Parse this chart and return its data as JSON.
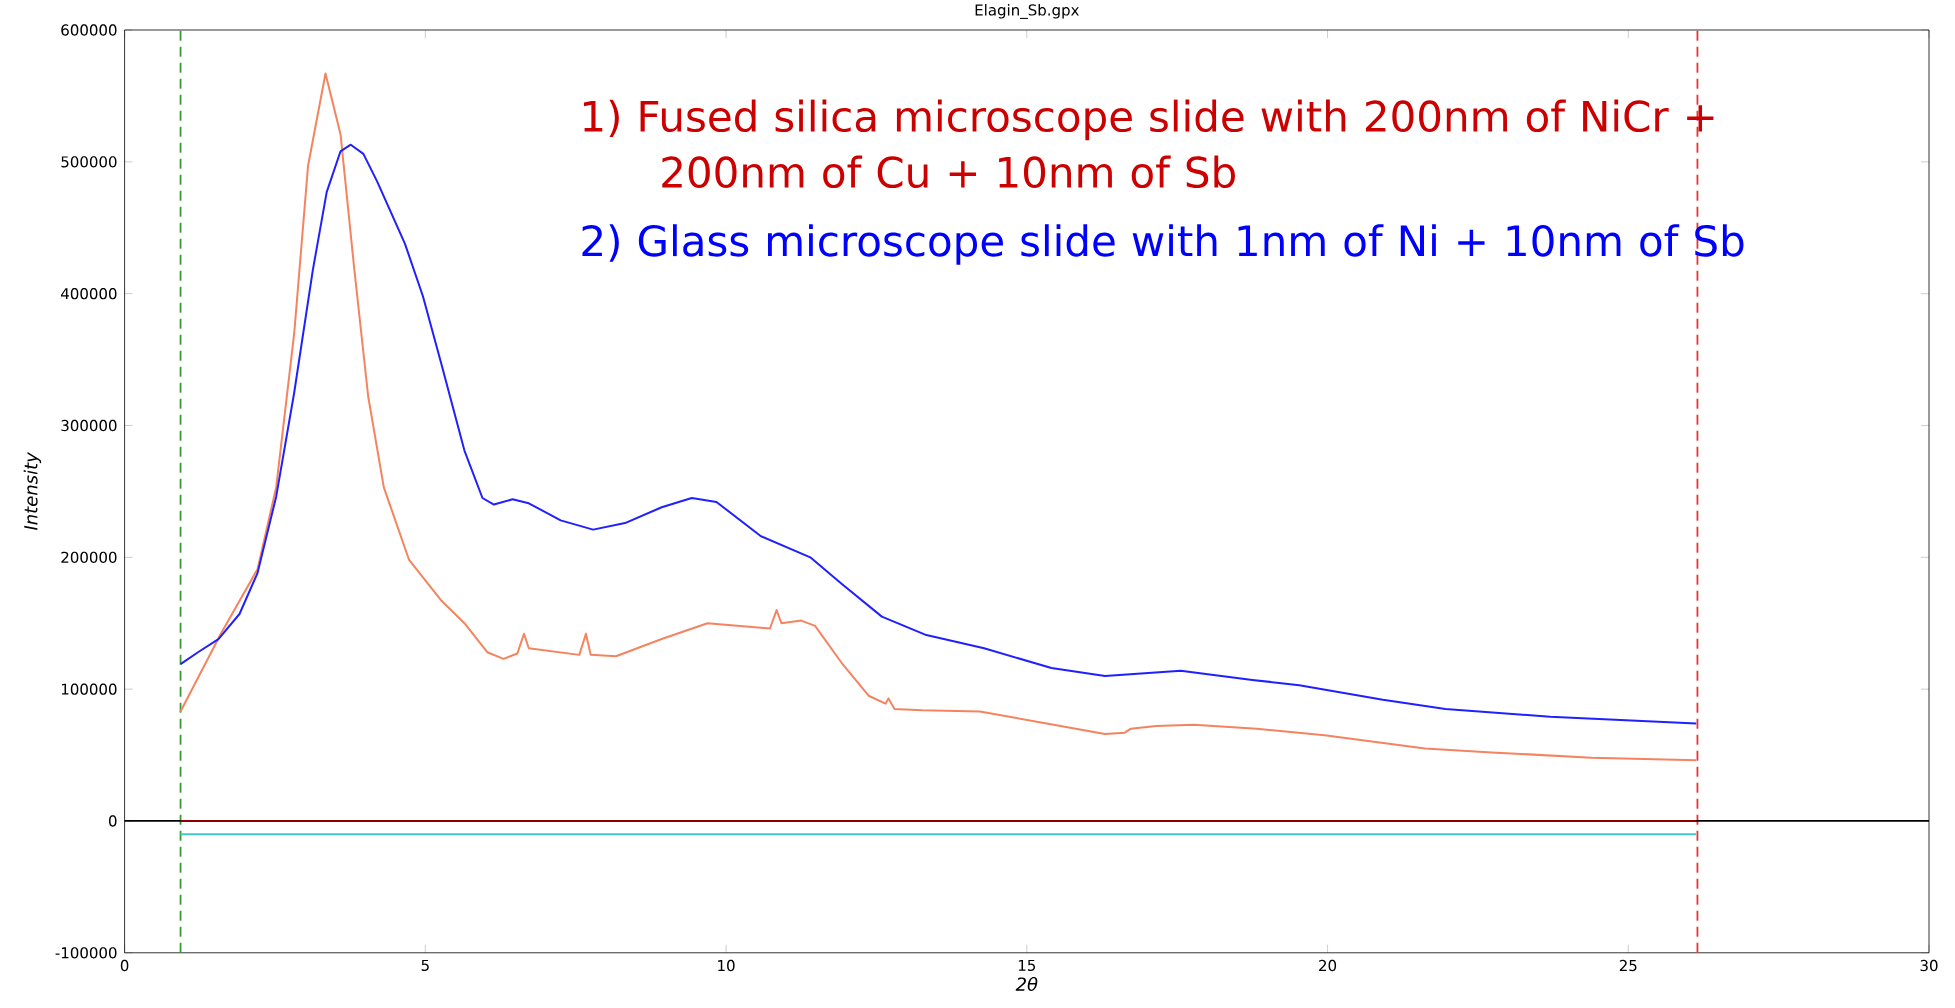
{
  "chart_data": {
    "type": "line",
    "title": "Elagin_Sb.gpx",
    "xlabel": "2θ",
    "ylabel": "Intensity",
    "xlim": [
      0,
      30
    ],
    "xticks": [
      0,
      5,
      10,
      15,
      20,
      25,
      30
    ],
    "ylim": [
      -100000,
      600000
    ],
    "yticks": [
      -100000,
      0,
      100000,
      200000,
      300000,
      400000,
      500000,
      600000
    ],
    "grid": false,
    "series": [
      {
        "color": "#f4845f",
        "x": [
          0.93,
          1.6,
          2.21,
          2.52,
          2.82,
          3.05,
          3.34,
          3.59,
          3.82,
          4.05,
          4.31,
          4.73,
          5.27,
          5.65,
          6.03,
          6.3,
          6.53,
          6.64,
          6.72,
          7.56,
          7.67,
          7.75,
          8.17,
          8.93,
          9.69,
          10.73,
          10.84,
          10.92,
          11.25,
          11.48,
          11.92,
          12.37,
          12.65,
          12.7,
          12.8,
          13.26,
          14.22,
          15.33,
          16.3,
          16.63,
          16.73,
          17.15,
          17.78,
          18.82,
          19.95,
          21.62,
          22.73,
          24.39,
          26.13
        ],
        "values": [
          83000,
          142000,
          191000,
          253000,
          370000,
          497000,
          567000,
          521000,
          418000,
          322000,
          253000,
          198000,
          167000,
          150000,
          128000,
          123000,
          127000,
          142000,
          131000,
          126000,
          142000,
          126000,
          125000,
          138000,
          150000,
          146000,
          160000,
          150000,
          152000,
          148000,
          120000,
          95000,
          89000,
          93000,
          85000,
          84000,
          83000,
          74000,
          66000,
          67000,
          70000,
          72000,
          73000,
          70000,
          65000,
          55000,
          52000,
          48000,
          46000
        ]
      },
      {
        "color": "#2020ff",
        "x": [
          0.93,
          1.22,
          1.56,
          1.91,
          2.21,
          2.52,
          2.82,
          3.13,
          3.36,
          3.59,
          3.76,
          3.97,
          4.2,
          4.66,
          4.96,
          5.27,
          5.65,
          5.95,
          6.14,
          6.45,
          6.72,
          7.25,
          7.79,
          8.32,
          8.93,
          9.43,
          9.84,
          10.58,
          11.4,
          11.92,
          12.59,
          13.33,
          14.29,
          15.41,
          16.3,
          17.56,
          18.75,
          19.53,
          20.92,
          21.96,
          23.7,
          26.13
        ],
        "values": [
          119000,
          128000,
          138000,
          157000,
          188000,
          246000,
          325000,
          418000,
          477000,
          508000,
          513000,
          506000,
          485000,
          438000,
          398000,
          346000,
          281000,
          245000,
          240000,
          244000,
          241000,
          228000,
          221000,
          226000,
          238000,
          245000,
          242000,
          216000,
          200000,
          180000,
          155000,
          141000,
          131000,
          116000,
          110000,
          114000,
          107000,
          103000,
          92000,
          85000,
          79000,
          74000
        ]
      },
      {
        "color": "#8b0000",
        "x": [
          0.93,
          26.13
        ],
        "values": [
          0,
          0
        ]
      },
      {
        "color": "#40c8c8",
        "x": [
          0.93,
          26.13
        ],
        "values": [
          -10000,
          -10000
        ]
      }
    ],
    "ref_lines": [
      {
        "axis": "x",
        "value": 0.93,
        "color": "#3a9a3a",
        "line_style": "dashed"
      },
      {
        "axis": "x",
        "value": 26.15,
        "color": "#ee3030",
        "line_style": "dashed"
      },
      {
        "axis": "y",
        "value": 0,
        "color": "#000000",
        "line_style": "solid"
      }
    ],
    "annotations": [
      "1)  Fused silica microscope slide with 200nm of NiCr + 200nm of Cu + 10nm of Sb",
      "2)  Glass microscope slide with 1nm of Ni + 10nm of Sb"
    ]
  }
}
